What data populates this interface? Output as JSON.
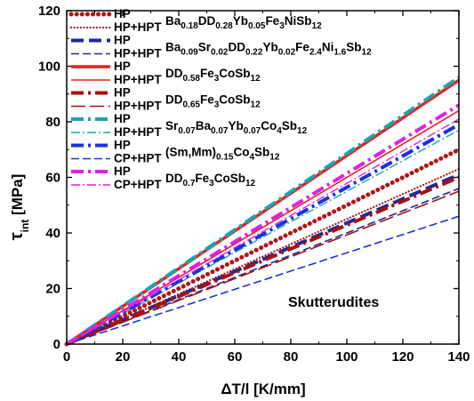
{
  "chart_data": {
    "type": "line",
    "xlabel": "ΔT/l [K/mm]",
    "ylabel": "τint [MPa]",
    "ylabel_main": "τ",
    "ylabel_sub": "int",
    "ylabel_unit": " [MPa]",
    "xlabel_main": "ΔT/l [K/mm]",
    "xlim": [
      0,
      140
    ],
    "ylim": [
      0,
      120
    ],
    "xticks": [
      0,
      20,
      40,
      60,
      80,
      100,
      120,
      140
    ],
    "yticks": [
      0,
      20,
      40,
      60,
      80,
      100,
      120
    ],
    "grid": false,
    "legend_position": "top-left",
    "annotation": "Skutterudites",
    "series": [
      {
        "name": "HP Ba0.18DD0.28Yb0.05Fe3NiSb12",
        "color": "#b01515",
        "style": "dotted-thick",
        "x": [
          0,
          140
        ],
        "values": [
          0,
          70
        ]
      },
      {
        "name": "HP+HPT Ba0.18DD0.28Yb0.05Fe3NiSb12",
        "color": "#b01515",
        "style": "dotted",
        "x": [
          0,
          140
        ],
        "values": [
          0,
          63
        ]
      },
      {
        "name": "HP Ba0.09Sr0.02DD0.22Yb0.02Fe2.4Ni1.6Sb12",
        "color": "#1a2a9c",
        "style": "dashed-thick",
        "x": [
          0,
          140
        ],
        "values": [
          0,
          61
        ]
      },
      {
        "name": "HP+HPT Ba0.09Sr0.02DD0.22Yb0.02Fe2.4Ni1.6Sb12",
        "color": "#1a2a9c",
        "style": "dashed",
        "x": [
          0,
          140
        ],
        "values": [
          0,
          56
        ]
      },
      {
        "name": "HP DD0.58Fe3CoSb12",
        "color": "#e8201e",
        "style": "solid-thick",
        "x": [
          0,
          140
        ],
        "values": [
          0,
          95
        ]
      },
      {
        "name": "HP+HPT DD0.58Fe3CoSb12",
        "color": "#e8201e",
        "style": "solid",
        "x": [
          0,
          140
        ],
        "values": [
          0,
          84
        ]
      },
      {
        "name": "HP DD0.65Fe3CoSb12",
        "color": "#a81010",
        "style": "dashdot-thick",
        "x": [
          0,
          140
        ],
        "values": [
          0,
          60
        ]
      },
      {
        "name": "HP+HPT DD0.65Fe3CoSb12",
        "color": "#a81010",
        "style": "longdash",
        "x": [
          0,
          140
        ],
        "values": [
          0,
          55
        ]
      },
      {
        "name": "HP Sr0.07Ba0.07Yb0.07Co4Sb12",
        "color": "#1aa5b0",
        "style": "dashdot-thick",
        "x": [
          0,
          140
        ],
        "values": [
          0,
          96
        ]
      },
      {
        "name": "HP+HPT Sr0.07Ba0.07Yb0.07Co4Sb12",
        "color": "#1aa5b0",
        "style": "dashdot",
        "x": [
          0,
          140
        ],
        "values": [
          0,
          77
        ]
      },
      {
        "name": "HP (Sm,Mm)0.15Co4Sb12",
        "color": "#1a30e0",
        "style": "dashdot-thick",
        "x": [
          0,
          140
        ],
        "values": [
          0,
          79
        ]
      },
      {
        "name": "CP+HPT (Sm,Mm)0.15Co4Sb12",
        "color": "#1a30e0",
        "style": "dashed",
        "x": [
          0,
          140
        ],
        "values": [
          0,
          46
        ]
      },
      {
        "name": "HP DD0.7Fe3CoSb12",
        "color": "#e020e0",
        "style": "dashdot-thick",
        "x": [
          0,
          140
        ],
        "values": [
          0,
          86
        ]
      },
      {
        "name": "CP+HPT DD0.7Fe3CoSb12",
        "color": "#e020e0",
        "style": "dashdot",
        "x": [
          0,
          140
        ],
        "values": [
          0,
          81
        ]
      }
    ],
    "legend": [
      {
        "label1": "HP",
        "label2": "HP+HPT",
        "formula": [
          [
            "Ba",
            ""
          ],
          [
            "0.18",
            "sub"
          ],
          [
            "DD",
            ""
          ],
          [
            "0.28",
            "sub"
          ],
          [
            "Yb",
            ""
          ],
          [
            "0.05",
            "sub"
          ],
          [
            "Fe",
            ""
          ],
          [
            "3",
            "sub"
          ],
          [
            "NiSb",
            ""
          ],
          [
            "12",
            "sub"
          ]
        ]
      },
      {
        "label1": "HP",
        "label2": "HP+HPT",
        "formula": [
          [
            "Ba",
            ""
          ],
          [
            "0.09",
            "sub"
          ],
          [
            "Sr",
            ""
          ],
          [
            "0.02",
            "sub"
          ],
          [
            "DD",
            ""
          ],
          [
            "0.22",
            "sub"
          ],
          [
            "Yb",
            ""
          ],
          [
            "0.02",
            "sub"
          ],
          [
            "Fe",
            ""
          ],
          [
            "2.4",
            "sub"
          ],
          [
            "Ni",
            ""
          ],
          [
            "1.6",
            "sub"
          ],
          [
            "Sb",
            ""
          ],
          [
            "12",
            "sub"
          ]
        ]
      },
      {
        "label1": "HP",
        "label2": "HP+HPT",
        "formula": [
          [
            "DD",
            ""
          ],
          [
            "0.58",
            "sub"
          ],
          [
            "Fe",
            ""
          ],
          [
            "3",
            "sub"
          ],
          [
            "CoSb",
            ""
          ],
          [
            "12",
            "sub"
          ]
        ]
      },
      {
        "label1": "HP",
        "label2": "HP+HPT",
        "formula": [
          [
            "DD",
            ""
          ],
          [
            "0.65",
            "sub"
          ],
          [
            "Fe",
            ""
          ],
          [
            "3",
            "sub"
          ],
          [
            "CoSb",
            ""
          ],
          [
            "12",
            "sub"
          ]
        ]
      },
      {
        "label1": "HP",
        "label2": "HP+HPT",
        "formula": [
          [
            "Sr",
            ""
          ],
          [
            "0.07",
            "sub"
          ],
          [
            "Ba",
            ""
          ],
          [
            "0.07",
            "sub"
          ],
          [
            "Yb",
            ""
          ],
          [
            "0.07",
            "sub"
          ],
          [
            "Co",
            ""
          ],
          [
            "4",
            "sub"
          ],
          [
            "Sb",
            ""
          ],
          [
            "12",
            "sub"
          ]
        ]
      },
      {
        "label1": "HP",
        "label2": "CP+HPT",
        "formula": [
          [
            "(Sm,Mm)",
            ""
          ],
          [
            "0.15",
            "sub"
          ],
          [
            "Co",
            ""
          ],
          [
            "4",
            "sub"
          ],
          [
            "Sb",
            ""
          ],
          [
            "12",
            "sub"
          ]
        ]
      },
      {
        "label1": "HP",
        "label2": "CP+HPT",
        "formula": [
          [
            "DD",
            ""
          ],
          [
            "0.7",
            "sub"
          ],
          [
            "Fe",
            ""
          ],
          [
            "3",
            "sub"
          ],
          [
            "CoSb",
            ""
          ],
          [
            "12",
            "sub"
          ]
        ]
      }
    ]
  }
}
